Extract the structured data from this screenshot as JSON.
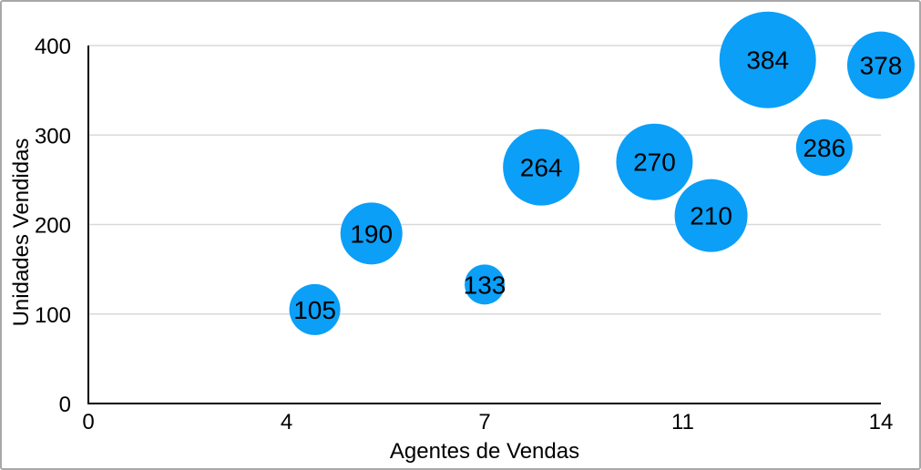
{
  "figure": {
    "background": "#ffffff",
    "border_color": "#a8a8a8"
  },
  "chart_data": {
    "type": "scatter",
    "variant": "bubble",
    "title": "",
    "xlabel": "Agentes de Vendas",
    "ylabel": "Unidades Vendidas",
    "xlim": [
      0,
      14
    ],
    "ylim": [
      0,
      400
    ],
    "x_ticks": [
      {
        "value": 0,
        "label": "0"
      },
      {
        "value": 3.5,
        "label": "4"
      },
      {
        "value": 7,
        "label": "7"
      },
      {
        "value": 10.5,
        "label": "11"
      },
      {
        "value": 14,
        "label": "14"
      }
    ],
    "y_ticks": [
      {
        "value": 0,
        "label": "0"
      },
      {
        "value": 100,
        "label": "100"
      },
      {
        "value": 200,
        "label": "200"
      },
      {
        "value": 300,
        "label": "300"
      },
      {
        "value": 400,
        "label": "400"
      }
    ],
    "grid": {
      "horizontal": true,
      "vertical": false
    },
    "legend": "none",
    "points": [
      {
        "x": 4,
        "y": 105,
        "label": "105",
        "radius_px": 28
      },
      {
        "x": 5,
        "y": 190,
        "label": "190",
        "radius_px": 34
      },
      {
        "x": 7,
        "y": 133,
        "label": "133",
        "radius_px": 22
      },
      {
        "x": 8,
        "y": 264,
        "label": "264",
        "radius_px": 42
      },
      {
        "x": 10,
        "y": 270,
        "label": "270",
        "radius_px": 42
      },
      {
        "x": 11,
        "y": 210,
        "label": "210",
        "radius_px": 40
      },
      {
        "x": 12,
        "y": 384,
        "label": "384",
        "radius_px": 53
      },
      {
        "x": 13,
        "y": 286,
        "label": "286",
        "radius_px": 31
      },
      {
        "x": 14,
        "y": 378,
        "label": "378",
        "radius_px": 37
      }
    ],
    "colors": {
      "bubble_fill": "#0b9ff7",
      "bubble_label": "#000000",
      "grid_line": "#d9d9d9",
      "axis_line": "#000000",
      "tick_label": "#000000",
      "axis_title": "#000000"
    }
  }
}
